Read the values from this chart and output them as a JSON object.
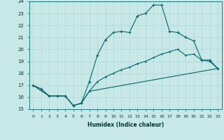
{
  "xlabel": "Humidex (Indice chaleur)",
  "bg_color": "#c8e8e8",
  "grid_color": "#b0d8d8",
  "line_color": "#006868",
  "xlim": [
    -0.5,
    23.5
  ],
  "ylim": [
    15,
    24
  ],
  "xticks": [
    0,
    1,
    2,
    3,
    4,
    5,
    6,
    7,
    8,
    9,
    10,
    11,
    12,
    13,
    14,
    15,
    16,
    17,
    18,
    19,
    20,
    21,
    22,
    23
  ],
  "yticks": [
    15,
    16,
    17,
    18,
    19,
    20,
    21,
    22,
    23,
    24
  ],
  "curve1_x": [
    0,
    1,
    2,
    3,
    4,
    5,
    6,
    7,
    8,
    9,
    10,
    11,
    12,
    13,
    14,
    15,
    16,
    17,
    18,
    19,
    20,
    21,
    22,
    23
  ],
  "curve1_y": [
    17.0,
    16.7,
    16.1,
    16.1,
    16.1,
    15.3,
    15.5,
    17.3,
    19.5,
    20.8,
    21.4,
    21.5,
    21.4,
    22.8,
    23.0,
    23.7,
    23.7,
    21.5,
    21.4,
    21.0,
    20.7,
    19.1,
    19.1,
    18.4
  ],
  "curve2_x": [
    0,
    2,
    3,
    4,
    5,
    6,
    7,
    8,
    9,
    10,
    11,
    12,
    13,
    14,
    15,
    16,
    17,
    18,
    19,
    20,
    21,
    22,
    23
  ],
  "curve2_y": [
    17.0,
    16.1,
    16.1,
    16.1,
    15.3,
    15.5,
    16.5,
    17.3,
    17.7,
    18.0,
    18.3,
    18.5,
    18.8,
    19.0,
    19.3,
    19.6,
    19.8,
    20.0,
    19.5,
    19.6,
    19.1,
    19.0,
    18.4
  ],
  "curve3_x": [
    0,
    2,
    3,
    4,
    5,
    6,
    7,
    23
  ],
  "curve3_y": [
    17.0,
    16.1,
    16.1,
    16.1,
    15.3,
    15.5,
    16.5,
    18.4
  ]
}
